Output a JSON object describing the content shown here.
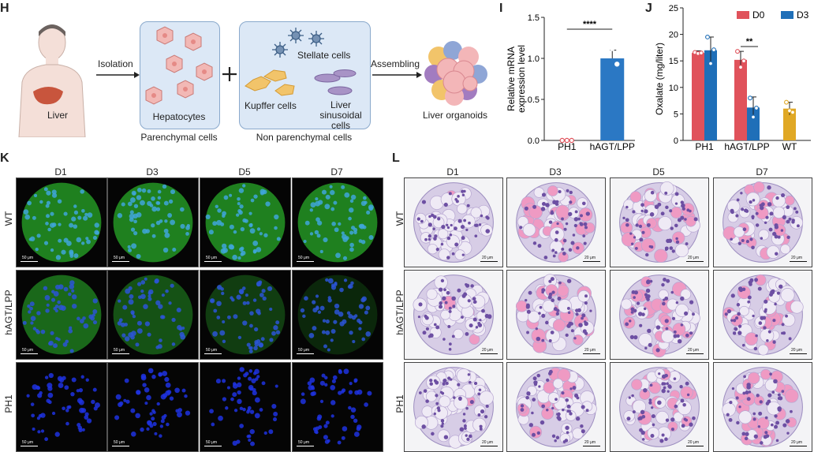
{
  "panels": {
    "H": {
      "letter": "H",
      "isolation": "Isolation",
      "liver": "Liver",
      "hepatocytes": "Hepatocytes",
      "stellate": "Stellate cells",
      "kupffer": "Kupffer cells",
      "lsec": "Liver\nsinusoidal cells",
      "assembling": "Assembling",
      "organoids": "Liver organoids",
      "parenchymal": "Parenchymal cells",
      "nonparenchymal": "Non parenchymal cells"
    },
    "I": {
      "letter": "I"
    },
    "J": {
      "letter": "J"
    },
    "K": {
      "letter": "K",
      "cols": [
        "D1",
        "D3",
        "D5",
        "D7"
      ],
      "rows": [
        "WT",
        "hAGT/LPP",
        "PH1"
      ],
      "scale": "50 μm"
    },
    "L": {
      "letter": "L",
      "cols": [
        "D1",
        "D3",
        "D5",
        "D7"
      ],
      "rows": [
        "WT",
        "hAGT/LPP",
        "PH1"
      ],
      "scale": "20 μm"
    }
  },
  "chart_data": [
    {
      "id": "I",
      "type": "bar",
      "categories": [
        "PH1",
        "hAGT/LPP"
      ],
      "values": [
        0.0,
        1.0
      ],
      "errors": [
        0.0,
        0.1
      ],
      "points": [
        [
          0.0,
          0.0,
          0.0
        ],
        [
          1.1,
          1.12,
          0.93
        ]
      ],
      "ylabel": "Relative mRNA\nexpression level",
      "ylim": [
        0,
        1.5
      ],
      "yticks": [
        "0.0",
        "0.5",
        "1.0",
        "1.5"
      ],
      "significance": "****",
      "bar_color": "#2b78c4"
    },
    {
      "id": "J",
      "type": "bar",
      "categories": [
        "PH1",
        "hAGT/LPP",
        "WT"
      ],
      "series": [
        {
          "name": "D0",
          "color": "#e0525b",
          "values": [
            16.5,
            15.2,
            null
          ],
          "errors": [
            0.4,
            1.6,
            null
          ],
          "points": [
            [
              16.6,
              16.4,
              16.5
            ],
            [
              16.8,
              13.8,
              15.0
            ]
          ]
        },
        {
          "name": "D3",
          "color": "#1f6fb8",
          "values": [
            17.0,
            6.2,
            null
          ],
          "errors": [
            2.5,
            2.0,
            null
          ],
          "points": [
            [
              19.5,
              14.5,
              17.1
            ],
            [
              8.0,
              4.4,
              6.1
            ]
          ]
        },
        {
          "name": "",
          "color": "#e0a825",
          "values": [
            null,
            null,
            6.0
          ],
          "errors": [
            null,
            null,
            1.2
          ],
          "points": [
            [],
            [],
            [
              7.2,
              5.6,
              5.3
            ]
          ]
        }
      ],
      "ylabel": "Oxalate (mg/liter)",
      "ylim": [
        0,
        25
      ],
      "yticks": [
        "0",
        "5",
        "10",
        "15",
        "20",
        "25"
      ],
      "significance": "**",
      "legend_position": "top"
    }
  ]
}
